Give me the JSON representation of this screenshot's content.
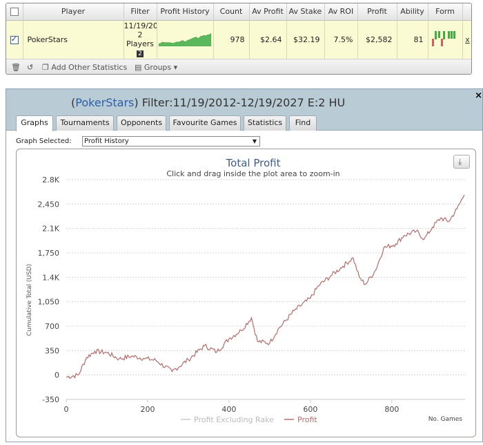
{
  "stats_table": {
    "columns": [
      "Player",
      "Filter",
      "Profit History",
      "Count",
      "Av Profit",
      "Av Stake",
      "Av ROI",
      "Profit",
      "Ability",
      "Form"
    ],
    "row": {
      "checked": true,
      "player": "PokerStars",
      "filter_line1": "11/19/20",
      "filter_line2": "2",
      "filter_line3": "Players",
      "filter_badge": "2",
      "count": "978",
      "av_profit": "$2.64",
      "av_stake": "$32.19",
      "av_roi": "7.5%",
      "profit": "$2,582",
      "ability": "81",
      "remove": "x"
    },
    "footer": {
      "add_stats": "Add Other Statistics",
      "groups": "Groups"
    },
    "form_colors": {
      "win": "#3fae3f",
      "loss": "#d06060"
    }
  },
  "report": {
    "title_site": "PokerStars",
    "title_rest": " Filter:11/19/2012-12/19/2027 E:2 HU",
    "close": "×",
    "tabs": [
      "Graphs",
      "Tournaments",
      "Opponents",
      "Favourite Games",
      "Statistics",
      "Find"
    ],
    "active_tab": "Graphs",
    "graph_selected_label": "Graph Selected:",
    "graph_selected_value": "Profit History"
  },
  "chart_data": {
    "type": "line",
    "title": "Total Profit",
    "subtitle": "Click and drag inside the plot area to zoom-in",
    "ylabel": "Cumulative Total (USD)",
    "xlabel": "No. Games",
    "y_ticks": [
      "2.8K",
      "2,450",
      "2.1K",
      "1,750",
      "1.4K",
      "1,050",
      "700",
      "350",
      "0",
      "-350"
    ],
    "x_ticks": [
      "0",
      "200",
      "400",
      "600",
      "800"
    ],
    "ylim": [
      -350,
      2800
    ],
    "xlim": [
      0,
      980
    ],
    "grid": true,
    "legend": [
      "Profit Excluding Rake",
      "Profit"
    ],
    "series_color": "#b86a6a",
    "x": [
      0,
      30,
      50,
      70,
      100,
      130,
      160,
      190,
      220,
      260,
      300,
      340,
      370,
      400,
      430,
      455,
      470,
      500,
      520,
      560,
      600,
      620,
      650,
      680,
      705,
      720,
      735,
      760,
      780,
      810,
      830,
      860,
      880,
      900,
      920,
      940,
      960,
      978
    ],
    "y": [
      -30,
      0,
      250,
      340,
      320,
      230,
      270,
      240,
      210,
      50,
      220,
      420,
      330,
      520,
      640,
      820,
      480,
      460,
      650,
      920,
      1100,
      1280,
      1420,
      1560,
      1680,
      1400,
      1300,
      1500,
      1820,
      1880,
      2000,
      2060,
      1950,
      2120,
      2250,
      2200,
      2380,
      2582
    ]
  }
}
